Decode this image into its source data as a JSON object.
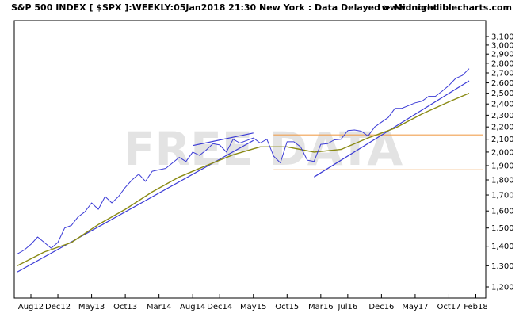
{
  "header": {
    "title": "S&P 500 INDEX [ $SPX ]:WEEKLY:05Jan2018 21:30 New York : Data Delayed > Midnight",
    "site": "www.incrediblecharts.com"
  },
  "watermark": "FREE DATA",
  "chart_data": {
    "type": "line",
    "y_axis_position": "right",
    "y_ticks": [
      1200,
      1300,
      1400,
      1500,
      1600,
      1700,
      1800,
      1900,
      2000,
      2100,
      2200,
      2300,
      2400,
      2500,
      2600,
      2700,
      2800,
      2900,
      3000,
      3100
    ],
    "y_tick_labels": [
      "1,200",
      "1,300",
      "1,400",
      "1,500",
      "1,600",
      "1,700",
      "1,800",
      "1,900",
      "2,000",
      "2,100",
      "2,200",
      "2,300",
      "2,400",
      "2,500",
      "2,600",
      "2,700",
      "2,800",
      "2,900",
      "3,000",
      "3,100"
    ],
    "x_tick_labels": [
      "Aug12",
      "Dec12",
      "May13",
      "Oct13",
      "Mar14",
      "Aug14",
      "Dec14",
      "May15",
      "Oct15",
      "Mar16",
      "Jul16",
      "Dec16",
      "May17",
      "Oct17",
      "Feb18"
    ],
    "x_tick_dates": [
      "2012-08",
      "2012-12",
      "2013-05",
      "2013-10",
      "2014-03",
      "2014-08",
      "2014-12",
      "2015-05",
      "2015-10",
      "2016-03",
      "2016-07",
      "2016-12",
      "2017-05",
      "2017-10",
      "2018-02"
    ],
    "x_range": [
      "2012-06",
      "2018-03"
    ],
    "log_scale": true,
    "grid": false,
    "series": [
      {
        "color": "#3b3bd6",
        "points": [
          [
            "2012-06",
            1360
          ],
          [
            "2012-07",
            1380
          ],
          [
            "2012-08",
            1410
          ],
          [
            "2012-09",
            1450
          ],
          [
            "2012-10",
            1420
          ],
          [
            "2012-11",
            1390
          ],
          [
            "2012-12",
            1420
          ],
          [
            "2013-01",
            1500
          ],
          [
            "2013-02",
            1515
          ],
          [
            "2013-03",
            1565
          ],
          [
            "2013-04",
            1595
          ],
          [
            "2013-05",
            1650
          ],
          [
            "2013-06",
            1610
          ],
          [
            "2013-07",
            1690
          ],
          [
            "2013-08",
            1650
          ],
          [
            "2013-09",
            1690
          ],
          [
            "2013-10",
            1750
          ],
          [
            "2013-11",
            1800
          ],
          [
            "2013-12",
            1840
          ],
          [
            "2014-01",
            1790
          ],
          [
            "2014-02",
            1860
          ],
          [
            "2014-03",
            1870
          ],
          [
            "2014-04",
            1880
          ],
          [
            "2014-05",
            1920
          ],
          [
            "2014-06",
            1960
          ],
          [
            "2014-07",
            1930
          ],
          [
            "2014-08",
            2000
          ],
          [
            "2014-09",
            1975
          ],
          [
            "2014-10",
            2015
          ],
          [
            "2014-11",
            2065
          ],
          [
            "2014-12",
            2055
          ],
          [
            "2015-01",
            2000
          ],
          [
            "2015-02",
            2100
          ],
          [
            "2015-03",
            2070
          ],
          [
            "2015-04",
            2090
          ],
          [
            "2015-05",
            2110
          ],
          [
            "2015-06",
            2070
          ],
          [
            "2015-07",
            2100
          ],
          [
            "2015-08",
            1970
          ],
          [
            "2015-09",
            1920
          ],
          [
            "2015-10",
            2080
          ],
          [
            "2015-11",
            2080
          ],
          [
            "2015-12",
            2040
          ],
          [
            "2016-01",
            1940
          ],
          [
            "2016-02",
            1930
          ],
          [
            "2016-03",
            2060
          ],
          [
            "2016-04",
            2065
          ],
          [
            "2016-05",
            2095
          ],
          [
            "2016-06",
            2100
          ],
          [
            "2016-07",
            2170
          ],
          [
            "2016-08",
            2175
          ],
          [
            "2016-09",
            2165
          ],
          [
            "2016-10",
            2125
          ],
          [
            "2016-11",
            2200
          ],
          [
            "2016-12",
            2240
          ],
          [
            "2017-01",
            2280
          ],
          [
            "2017-02",
            2360
          ],
          [
            "2017-03",
            2360
          ],
          [
            "2017-04",
            2385
          ],
          [
            "2017-05",
            2410
          ],
          [
            "2017-06",
            2425
          ],
          [
            "2017-07",
            2470
          ],
          [
            "2017-08",
            2470
          ],
          [
            "2017-09",
            2520
          ],
          [
            "2017-10",
            2575
          ],
          [
            "2017-11",
            2645
          ],
          [
            "2017-12",
            2675
          ],
          [
            "2018-01",
            2743
          ]
        ]
      },
      {
        "color": "#8a8a14",
        "points": [
          [
            "2012-06",
            1300
          ],
          [
            "2012-10",
            1370
          ],
          [
            "2013-02",
            1420
          ],
          [
            "2013-06",
            1520
          ],
          [
            "2013-10",
            1610
          ],
          [
            "2014-02",
            1720
          ],
          [
            "2014-06",
            1820
          ],
          [
            "2014-10",
            1900
          ],
          [
            "2015-02",
            1980
          ],
          [
            "2015-06",
            2040
          ],
          [
            "2015-10",
            2040
          ],
          [
            "2016-02",
            2000
          ],
          [
            "2016-06",
            2020
          ],
          [
            "2016-10",
            2110
          ],
          [
            "2017-02",
            2190
          ],
          [
            "2017-06",
            2310
          ],
          [
            "2017-10",
            2420
          ],
          [
            "2018-01",
            2500
          ]
        ]
      }
    ],
    "trendlines": [
      {
        "color": "#3b3bd6",
        "from": [
          "2012-06",
          1270
        ],
        "to": [
          "2015-05",
          2090
        ]
      },
      {
        "color": "#3b3bd6",
        "from": [
          "2014-08",
          2050
        ],
        "to": [
          "2015-05",
          2150
        ]
      },
      {
        "color": "#3b3bd6",
        "from": [
          "2016-02",
          1820
        ],
        "to": [
          "2018-01",
          2620
        ]
      }
    ],
    "horizontal_lines": [
      {
        "color": "#f0a050",
        "y": 2135,
        "from": "2015-08",
        "to": "2018-03"
      },
      {
        "color": "#f0a050",
        "y": 1870,
        "from": "2015-08",
        "to": "2018-03"
      }
    ]
  }
}
